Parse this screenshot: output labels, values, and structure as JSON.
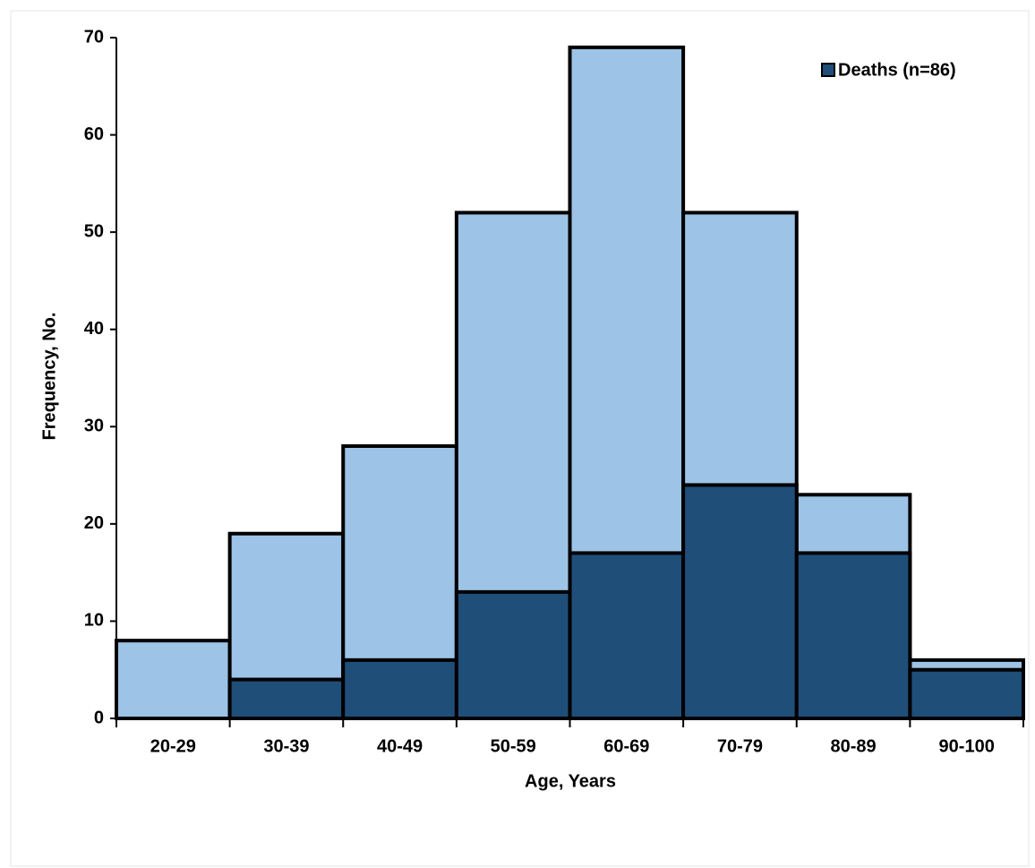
{
  "chart_data": {
    "type": "bar",
    "barmode": "overlay",
    "xlabel": "Age, Years",
    "ylabel": "Frequency, No.",
    "categories": [
      "20-29",
      "30-39",
      "40-49",
      "50-59",
      "60-69",
      "70-79",
      "80-89",
      "90-100"
    ],
    "series": [
      {
        "color": "#9dc3e6",
        "values": [
          8,
          19,
          28,
          52,
          69,
          52,
          23,
          6
        ]
      },
      {
        "name": "Deaths (n=86)",
        "color": "#1f4e79",
        "values": [
          0,
          4,
          6,
          13,
          17,
          24,
          17,
          5
        ]
      }
    ],
    "ylim": [
      0,
      70
    ],
    "yticks": [
      0,
      10,
      20,
      30,
      40,
      50,
      60,
      70
    ],
    "legend": "top-right"
  }
}
